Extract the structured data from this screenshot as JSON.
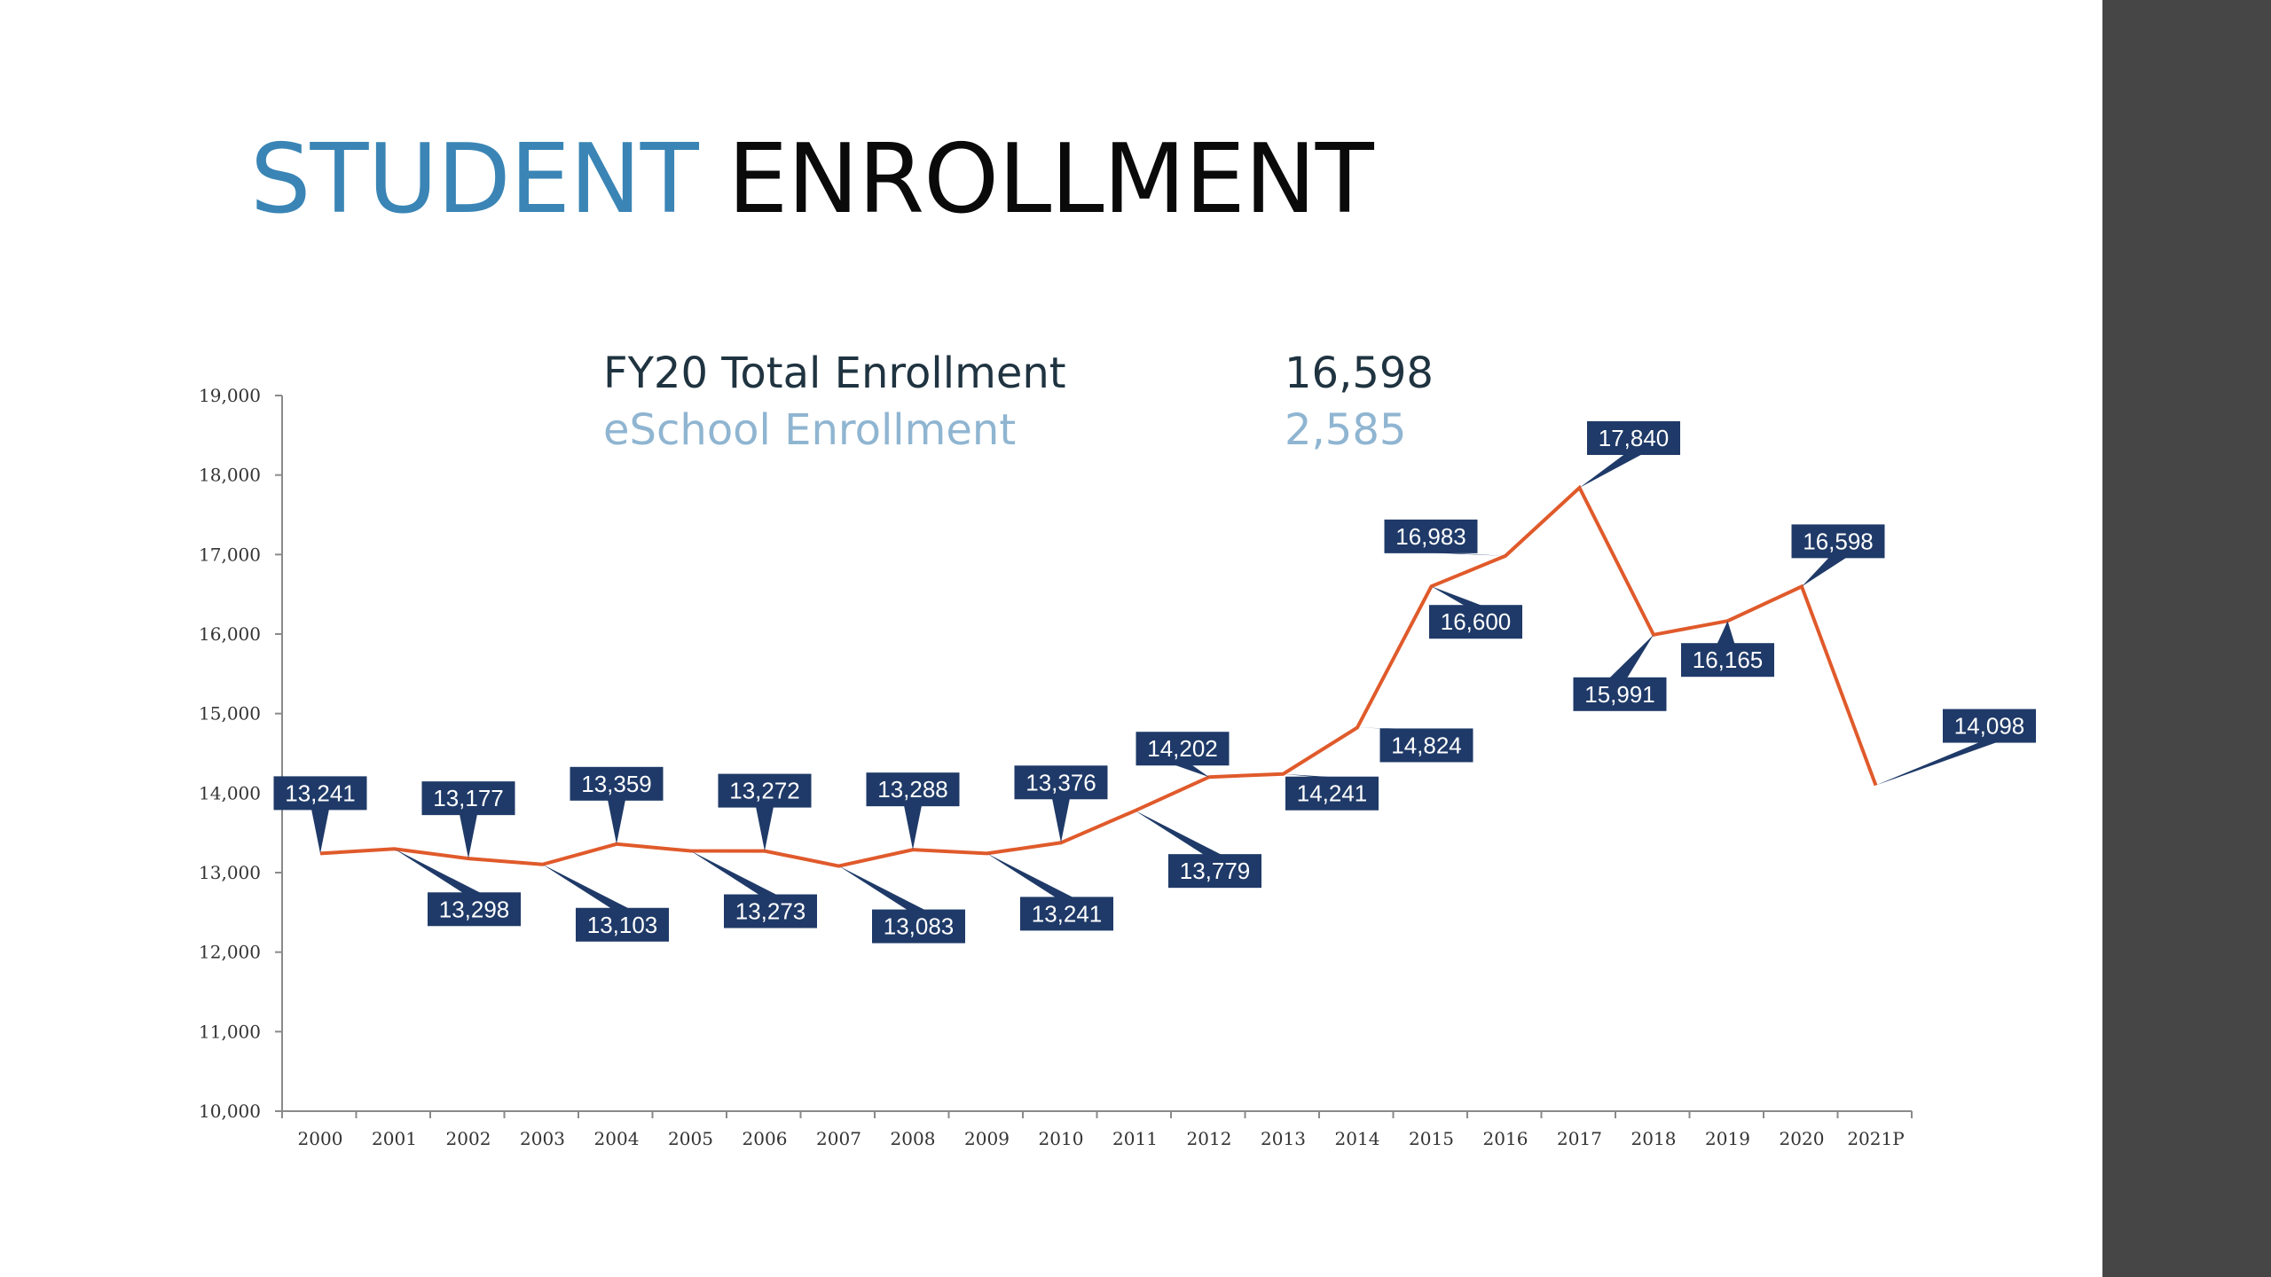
{
  "title": {
    "part1": "STUDENT",
    "part2": "ENROLLMENT"
  },
  "info": {
    "total_label": "FY20 Total Enrollment",
    "total_value": "16,598",
    "eschool_label": "eSchool Enrollment",
    "eschool_value": "2,585"
  },
  "colors": {
    "title_accent": "#3a85b5",
    "line": "#e05a2b",
    "callout": "#1f3a68",
    "side_panel": "#464646"
  },
  "chart_data": {
    "type": "line",
    "title": "",
    "xlabel": "",
    "ylabel": "",
    "ylim": [
      10000,
      19000
    ],
    "yticks": [
      10000,
      11000,
      12000,
      13000,
      14000,
      15000,
      16000,
      17000,
      18000,
      19000
    ],
    "ytick_labels": [
      "10,000",
      "11,000",
      "12,000",
      "13,000",
      "14,000",
      "15,000",
      "16,000",
      "17,000",
      "18,000",
      "19,000"
    ],
    "categories": [
      "2000",
      "2001",
      "2002",
      "2003",
      "2004",
      "2005",
      "2006",
      "2007",
      "2008",
      "2009",
      "2010",
      "2011",
      "2012",
      "2013",
      "2014",
      "2015",
      "2016",
      "2017",
      "2018",
      "2019",
      "2020",
      "2021P"
    ],
    "values": [
      13241,
      13298,
      13177,
      13103,
      13359,
      13273,
      13272,
      13083,
      13288,
      13241,
      13376,
      13779,
      14202,
      14241,
      14824,
      16600,
      16983,
      17840,
      15991,
      16165,
      16598,
      14098
    ],
    "data_labels": [
      "13,241",
      "13,298",
      "13,177",
      "13,103",
      "13,359",
      "13,273",
      "13,272",
      "13,083",
      "13,288",
      "13,241",
      "13,376",
      "13,779",
      "14,202",
      "14,241",
      "14,824",
      "16,600",
      "16,983",
      "17,840",
      "15,991",
      "16,165",
      "16,598",
      "14,098"
    ],
    "grid": false,
    "legend": "none"
  }
}
